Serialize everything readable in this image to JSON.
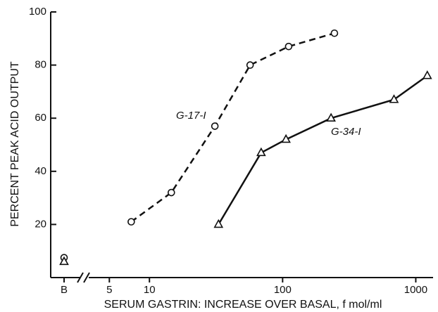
{
  "chart_data": {
    "type": "line",
    "xlabel": "SERUM GASTRIN: INCREASE OVER BASAL, f mol/ml",
    "ylabel": "PERCENT PEAK ACID OUTPUT",
    "xscale": "log",
    "xlim": [
      3.5,
      1300
    ],
    "xticks": [
      5,
      10,
      100,
      1000
    ],
    "basal_tick": "B",
    "ylim": [
      0,
      100
    ],
    "yticks": [
      20,
      40,
      60,
      80,
      100
    ],
    "series": [
      {
        "name": "G-17-I",
        "color": "#111111",
        "dash": true,
        "marker": "circle",
        "x": [
          7.3,
          14.6,
          31,
          57,
          111,
          245
        ],
        "values": [
          21,
          32,
          57,
          80,
          87,
          92
        ],
        "basal": 7.5
      },
      {
        "name": "G-34-I",
        "color": "#111111",
        "dash": false,
        "marker": "triangle",
        "x": [
          33,
          69,
          106,
          231,
          686,
          1220
        ],
        "values": [
          20,
          47,
          52,
          60,
          67,
          76
        ],
        "basal": 6
      }
    ]
  }
}
